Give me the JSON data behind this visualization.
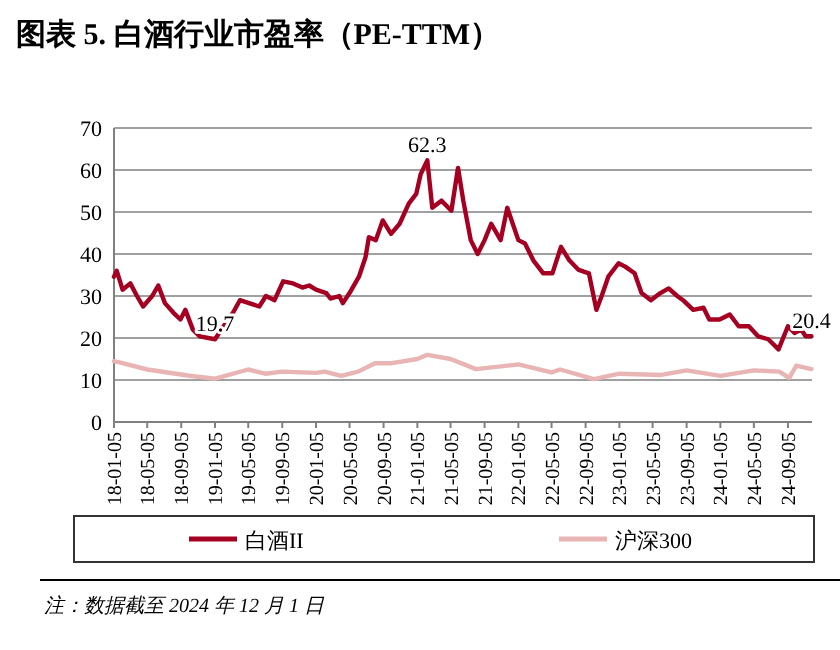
{
  "chart_data": {
    "type": "line",
    "title": "图表 5. 白酒行业市盈率（PE-TTM）",
    "x": [
      "2018-01-05",
      "2018-01-15",
      "2018-02-05",
      "2018-03-05",
      "2018-03-29",
      "2018-04-20",
      "2018-05-23",
      "2018-06-14",
      "2018-07-08",
      "2018-08-08",
      "2018-09-02",
      "2018-09-20",
      "2018-10-17",
      "2018-11-11",
      "2019-01-05",
      "2019-02-05",
      "2019-03-11",
      "2019-04-05",
      "2019-05-08",
      "2019-06-14",
      "2019-07-08",
      "2019-08-08",
      "2019-09-08",
      "2019-10-14",
      "2019-11-17",
      "2019-12-11",
      "2020-01-05",
      "2020-02-11",
      "2020-02-26",
      "2020-03-29",
      "2020-04-11",
      "2020-05-05",
      "2020-06-08",
      "2020-07-02",
      "2020-07-14",
      "2020-08-08",
      "2020-09-02",
      "2020-10-02",
      "2020-11-02",
      "2020-12-05",
      "2021-01-01",
      "2021-01-17",
      "2021-02-10",
      "2021-02-28",
      "2021-04-02",
      "2021-05-08",
      "2021-06-01",
      "2021-06-20",
      "2021-07-17",
      "2021-08-11",
      "2021-09-05",
      "2021-09-29",
      "2021-11-02",
      "2021-11-26",
      "2022-01-05",
      "2022-01-29",
      "2022-02-28",
      "2022-04-05",
      "2022-05-08",
      "2022-06-08",
      "2022-07-08",
      "2022-08-11",
      "2022-09-17",
      "2022-10-14",
      "2022-11-02",
      "2022-11-26",
      "2023-01-02",
      "2023-01-26",
      "2023-03-01",
      "2023-03-26",
      "2023-04-29",
      "2023-06-02",
      "2023-07-02",
      "2023-08-02",
      "2023-08-23",
      "2023-09-29",
      "2023-11-05",
      "2023-11-26",
      "2024-01-02",
      "2024-02-08",
      "2024-03-11",
      "2024-04-17",
      "2024-05-20",
      "2024-06-26",
      "2024-08-02",
      "2024-09-05",
      "2024-09-29",
      "2024-10-23",
      "2024-11-08",
      "2024-11-29"
    ],
    "series": [
      {
        "name": "白酒II",
        "color": "#a50021",
        "values": [
          34.6,
          36,
          31.5,
          33,
          30,
          27.5,
          30,
          32.5,
          28.3,
          26,
          24.4,
          26.7,
          22,
          20.4,
          19.7,
          22.8,
          26,
          29,
          28.3,
          27.5,
          30,
          29,
          33.5,
          33,
          32,
          32.5,
          31.5,
          30.7,
          29.4,
          30,
          28.3,
          30.7,
          34.6,
          39.3,
          44,
          43.3,
          48,
          44.8,
          47.2,
          52,
          54.3,
          59,
          62.3,
          51,
          52.7,
          50.3,
          60.5,
          52.7,
          43.3,
          40,
          43.3,
          47.2,
          43.3,
          51,
          43.3,
          42.5,
          38.5,
          35.4,
          35.4,
          41.7,
          38.5,
          36.2,
          35.4,
          26.7,
          30,
          34.6,
          37.8,
          37,
          35.4,
          30.7,
          29,
          30.7,
          31.8,
          30,
          29,
          26.7,
          27.2,
          24.4,
          24.4,
          25.6,
          22.8,
          22.8,
          20.4,
          19.7,
          17.3,
          22.8,
          21.2,
          22,
          20.4,
          20.4
        ]
      },
      {
        "name": "沪深300",
        "color": "#e8b4b4",
        "x": [
          "2018-01-05",
          "2018-02-05",
          "2018-05-05",
          "2018-10-05",
          "2019-01-05",
          "2019-05-05",
          "2019-07-05",
          "2019-09-05",
          "2020-01-05",
          "2020-02-05",
          "2020-04-05",
          "2020-06-05",
          "2020-08-05",
          "2020-10-05",
          "2021-01-05",
          "2021-02-10",
          "2021-05-05",
          "2021-08-05",
          "2022-01-05",
          "2022-05-05",
          "2022-06-05",
          "2022-10-05",
          "2023-01-05",
          "2023-06-05",
          "2023-09-05",
          "2024-01-05",
          "2024-05-05",
          "2024-08-05",
          "2024-09-10",
          "2024-10-05",
          "2024-11-29"
        ],
        "values": [
          14.5,
          14,
          12.5,
          11,
          10.3,
          12.5,
          11.5,
          12,
          11.7,
          12,
          11,
          12,
          14,
          14,
          15,
          16,
          15,
          12.6,
          13.7,
          11.8,
          12.5,
          10.2,
          11.5,
          11.2,
          12.3,
          11,
          12.3,
          12,
          10.5,
          13.4,
          12.6
        ]
      }
    ],
    "xlim": [
      "2018-01-05",
      "2024-12-01"
    ],
    "xticks": [
      {
        "value": "2018-01-05",
        "label": "18-01-05"
      },
      {
        "value": "2018-05-05",
        "label": "18-05-05"
      },
      {
        "value": "2018-09-05",
        "label": "18-09-05"
      },
      {
        "value": "2019-01-05",
        "label": "19-01-05"
      },
      {
        "value": "2019-05-05",
        "label": "19-05-05"
      },
      {
        "value": "2019-09-05",
        "label": "19-09-05"
      },
      {
        "value": "2020-01-05",
        "label": "20-01-05"
      },
      {
        "value": "2020-05-05",
        "label": "20-05-05"
      },
      {
        "value": "2020-09-05",
        "label": "20-09-05"
      },
      {
        "value": "2021-01-05",
        "label": "21-01-05"
      },
      {
        "value": "2021-05-05",
        "label": "21-05-05"
      },
      {
        "value": "2021-09-05",
        "label": "21-09-05"
      },
      {
        "value": "2022-01-05",
        "label": "22-01-05"
      },
      {
        "value": "2022-05-05",
        "label": "22-05-05"
      },
      {
        "value": "2022-09-05",
        "label": "22-09-05"
      },
      {
        "value": "2023-01-05",
        "label": "23-01-05"
      },
      {
        "value": "2023-05-05",
        "label": "23-05-05"
      },
      {
        "value": "2023-09-05",
        "label": "23-09-05"
      },
      {
        "value": "2024-01-05",
        "label": "24-01-05"
      },
      {
        "value": "2024-05-05",
        "label": "24-05-05"
      },
      {
        "value": "2024-09-05",
        "label": "24-09-05"
      }
    ],
    "ylim": [
      0,
      70
    ],
    "yticks": [
      0,
      10,
      20,
      30,
      40,
      50,
      60,
      70
    ],
    "grid": "y",
    "legend": "bottom",
    "marker": "none",
    "line_style": "solid",
    "annotations": [
      {
        "text": "19.7",
        "x": "2019-01-05",
        "y": 19.7
      },
      {
        "text": "62.3",
        "x": "2021-02-10",
        "y": 62.3
      },
      {
        "text": "20.4",
        "x": "2024-11-29",
        "y": 20.4
      },
      "注：数据截至 2024 年 12 月 1 日"
    ]
  }
}
